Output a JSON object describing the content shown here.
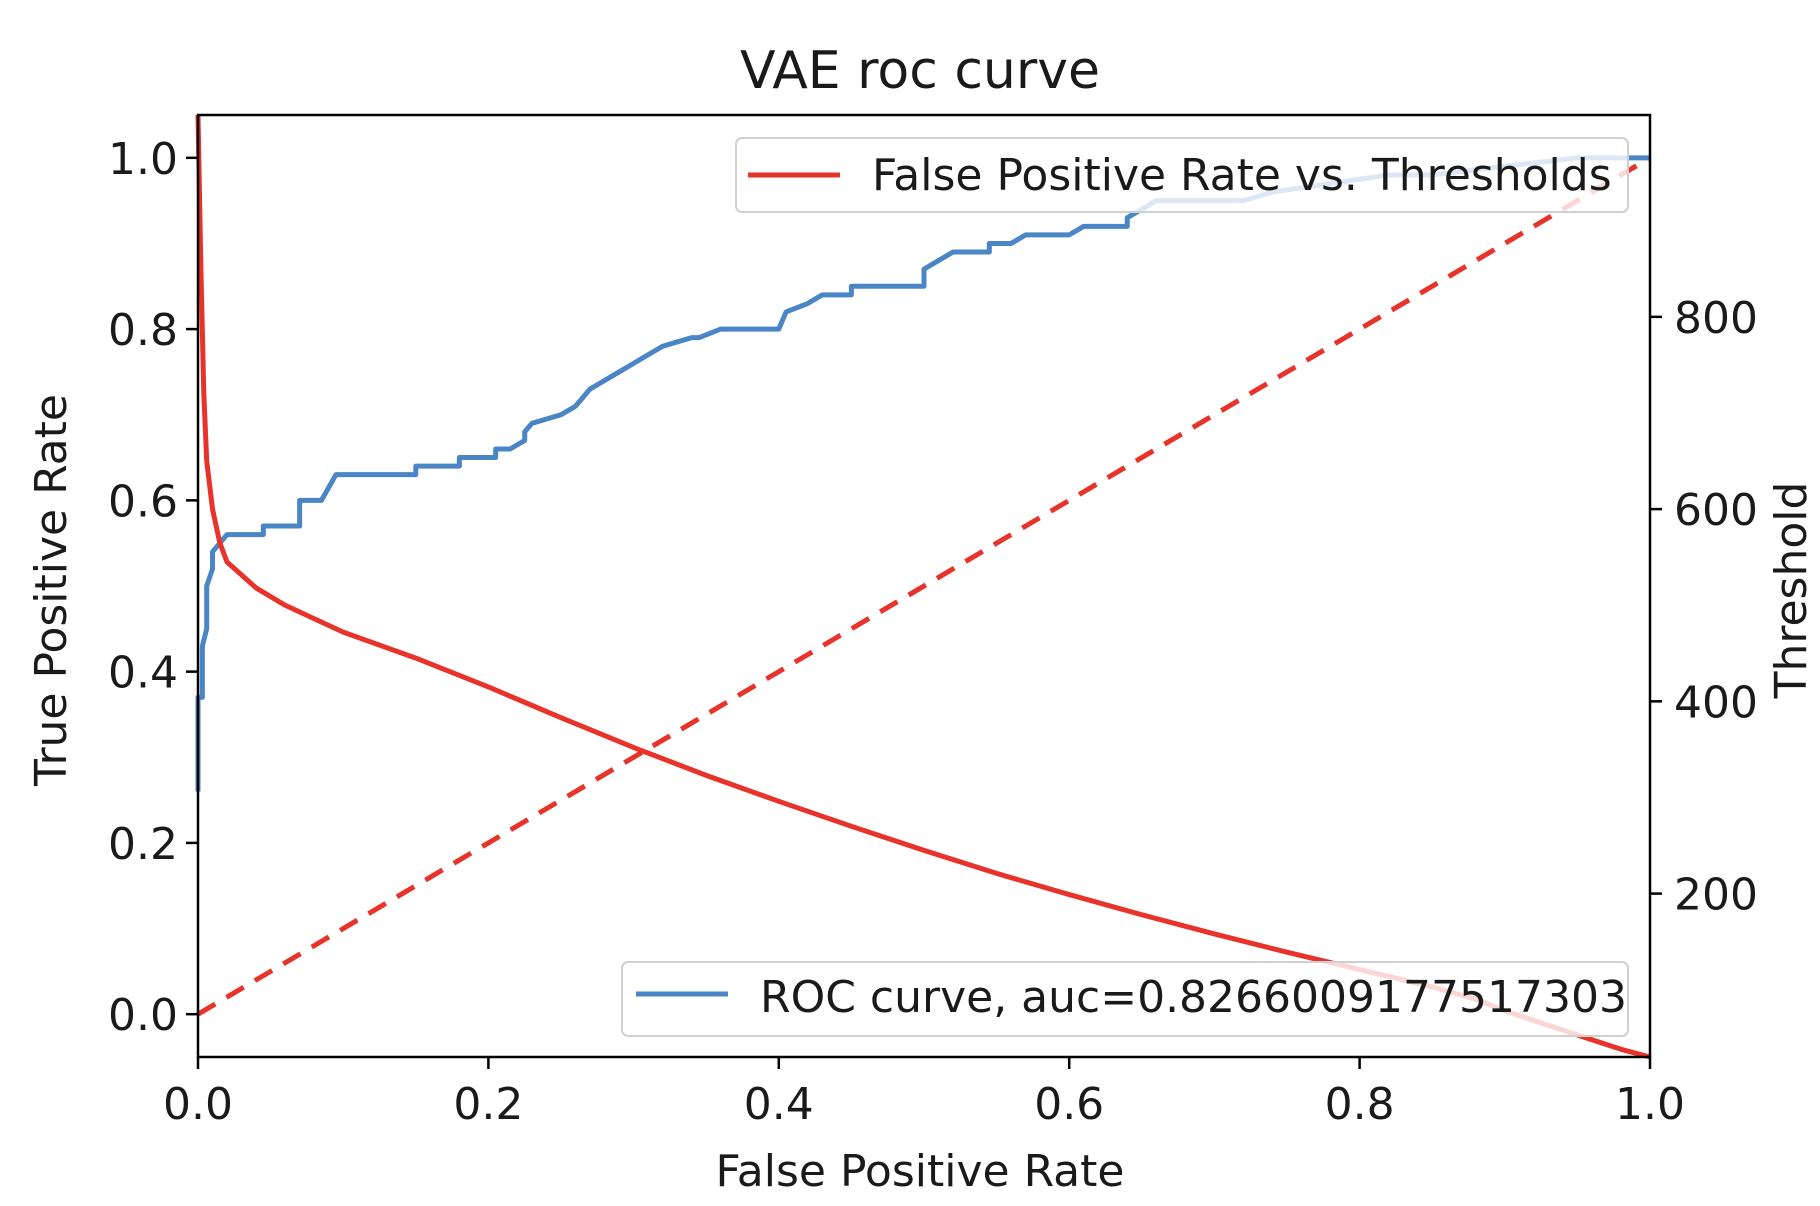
{
  "chart_data": {
    "type": "line",
    "title": "VAE roc curve",
    "xlabel": "False Positive Rate",
    "ylabel": "True Positive Rate",
    "y2label": "Threshold",
    "xlim": [
      0.0,
      1.0
    ],
    "ylim": [
      -0.05,
      1.05
    ],
    "y2lim": [
      30,
      1010
    ],
    "xticks": [
      "0.0",
      "0.2",
      "0.4",
      "0.6",
      "0.8",
      "1.0"
    ],
    "yticks": [
      "0.0",
      "0.2",
      "0.4",
      "0.6",
      "0.8",
      "1.0"
    ],
    "y2ticks": [
      "200",
      "400",
      "600",
      "800"
    ],
    "grid": false,
    "colors": {
      "roc": "#4a86c5",
      "threshold": "#e8332a",
      "axis": "#000000",
      "y2label": "#e8332a"
    },
    "legends": [
      {
        "label": "False Positive Rate vs. Thresholds",
        "position": "top-right",
        "color": "#e8332a"
      },
      {
        "label": "ROC curve, auc=0.8266009177517303",
        "position": "bottom-right",
        "color": "#4a86c5"
      }
    ],
    "series": [
      {
        "name": "ROC curve, auc=0.8266009177517303",
        "axis": "left",
        "style": "solid",
        "x": [
          0.0,
          0.0,
          0.003,
          0.003,
          0.006,
          0.006,
          0.01,
          0.01,
          0.015,
          0.02,
          0.02,
          0.03,
          0.045,
          0.045,
          0.07,
          0.07,
          0.085,
          0.095,
          0.15,
          0.15,
          0.18,
          0.18,
          0.205,
          0.205,
          0.215,
          0.225,
          0.225,
          0.23,
          0.25,
          0.26,
          0.265,
          0.27,
          0.28,
          0.29,
          0.3,
          0.31,
          0.32,
          0.33,
          0.34,
          0.345,
          0.36,
          0.4,
          0.405,
          0.42,
          0.43,
          0.45,
          0.45,
          0.5,
          0.5,
          0.51,
          0.52,
          0.545,
          0.545,
          0.56,
          0.57,
          0.6,
          0.61,
          0.64,
          0.64,
          0.65,
          0.66,
          0.72,
          0.74,
          0.74,
          0.78,
          0.82,
          0.85,
          0.9,
          0.95,
          1.0
        ],
        "y": [
          0.26,
          0.37,
          0.37,
          0.43,
          0.45,
          0.5,
          0.52,
          0.54,
          0.55,
          0.56,
          0.56,
          0.56,
          0.56,
          0.57,
          0.57,
          0.6,
          0.6,
          0.63,
          0.63,
          0.64,
          0.64,
          0.65,
          0.65,
          0.66,
          0.66,
          0.67,
          0.68,
          0.69,
          0.7,
          0.71,
          0.72,
          0.73,
          0.74,
          0.75,
          0.76,
          0.77,
          0.78,
          0.785,
          0.79,
          0.79,
          0.8,
          0.8,
          0.82,
          0.83,
          0.84,
          0.84,
          0.85,
          0.85,
          0.87,
          0.88,
          0.89,
          0.89,
          0.9,
          0.9,
          0.91,
          0.91,
          0.92,
          0.92,
          0.93,
          0.94,
          0.95,
          0.95,
          0.96,
          0.96,
          0.97,
          0.98,
          0.98,
          0.99,
          1.0,
          1.0
        ]
      },
      {
        "name": "False Positive Rate vs. Thresholds",
        "axis": "right",
        "style": "solid",
        "x": [
          0.0,
          0.002,
          0.004,
          0.006,
          0.01,
          0.015,
          0.02,
          0.04,
          0.06,
          0.1,
          0.15,
          0.2,
          0.25,
          0.3,
          0.35,
          0.4,
          0.45,
          0.5,
          0.55,
          0.6,
          0.65,
          0.7,
          0.75,
          0.8,
          0.85,
          0.88,
          0.9,
          0.92,
          0.94,
          0.96,
          0.98,
          1.0
        ],
        "y": [
          1010,
          850,
          720,
          650,
          600,
          565,
          545,
          518,
          500,
          472,
          445,
          415,
          383,
          352,
          323,
          296,
          270,
          245,
          221,
          199,
          178,
          158,
          139,
          121,
          103,
          90,
          78,
          68,
          58,
          48,
          38,
          30
        ]
      },
      {
        "axis": "left",
        "style": "dashed",
        "x": [
          0.0,
          1.0
        ],
        "y": [
          0.0,
          1.0
        ]
      }
    ]
  }
}
